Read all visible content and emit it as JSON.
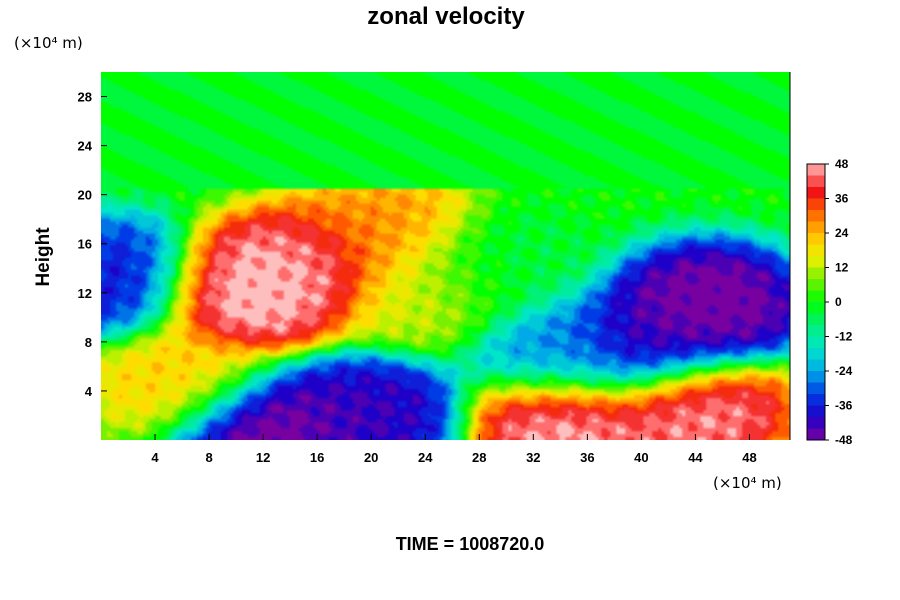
{
  "chart_data": {
    "type": "heatmap",
    "title": "zonal velocity",
    "ylabel": "Height",
    "xlabel": "",
    "x_unit": "(×10⁴ m)",
    "y_unit": "(×10⁴ m)",
    "xlim": [
      0,
      51
    ],
    "ylim": [
      0,
      30
    ],
    "x_ticks": [
      "4",
      "8",
      "12",
      "16",
      "20",
      "24",
      "28",
      "32",
      "36",
      "40",
      "44",
      "48"
    ],
    "y_ticks": [
      "4",
      "8",
      "12",
      "16",
      "20",
      "24",
      "28"
    ],
    "colorbar": {
      "min": -48,
      "max": 48,
      "ticks": [
        "48",
        "36",
        "24",
        "12",
        "0",
        "-12",
        "-24",
        "-36",
        "-48"
      ]
    },
    "features": [
      {
        "x": 10.5,
        "z": 12,
        "u": 52
      },
      {
        "x": 15,
        "z": 14,
        "u": 48
      },
      {
        "x": 45,
        "z": 11,
        "u": -52
      },
      {
        "x": 41,
        "z": 8,
        "u": -45
      },
      {
        "x": 1,
        "z": 13,
        "u": -38
      },
      {
        "x": 34,
        "z": 7,
        "u": -28
      },
      {
        "x": 12,
        "z": 1,
        "u": -52
      },
      {
        "x": 20,
        "z": 2,
        "u": -44
      },
      {
        "x": 34,
        "z": 1.5,
        "u": 50
      },
      {
        "x": 44,
        "z": 2.5,
        "u": 48
      },
      {
        "x": 24,
        "z": 12,
        "u": 14
      },
      {
        "x": 29,
        "z": 14,
        "u": -4
      },
      {
        "x": 21,
        "z": 17,
        "u": 28
      },
      {
        "x": 6,
        "z": 5,
        "u": 22
      }
    ],
    "upper_layer_value": -2,
    "upper_layer_base": 20.4,
    "time_label": "TIME = 1008720.0"
  }
}
